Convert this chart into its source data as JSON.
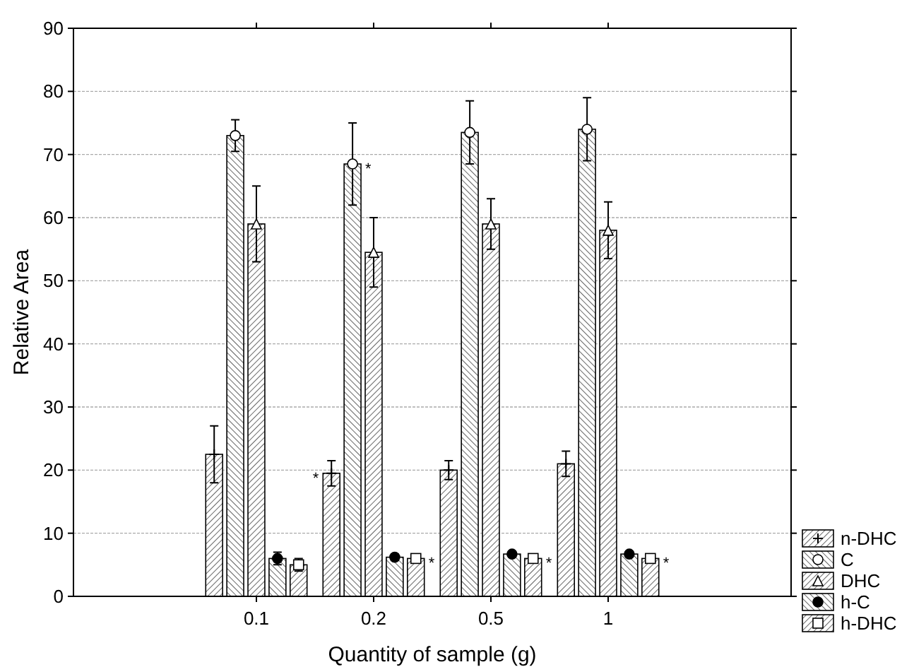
{
  "chart_data": {
    "type": "bar",
    "xlabel": "Quantity of sample (g)",
    "ylabel": "Relative Area",
    "categories": [
      "0.1",
      "0.2",
      "0.5",
      "1"
    ],
    "series": [
      {
        "name": "n-DHC",
        "color": "#000000",
        "marker": "cross",
        "values": [
          22.5,
          19.5,
          20,
          21
        ],
        "errors": [
          4.5,
          2,
          1.5,
          2
        ]
      },
      {
        "name": "C",
        "color": "#000000",
        "marker": "circle",
        "values": [
          73,
          68.5,
          73.5,
          74
        ],
        "errors": [
          2.5,
          6.5,
          5,
          5
        ]
      },
      {
        "name": "DHC",
        "color": "#000000",
        "marker": "triangle",
        "values": [
          59,
          54.5,
          59,
          58
        ],
        "errors": [
          6,
          5.5,
          4,
          4.5
        ]
      },
      {
        "name": "h-C",
        "color": "#000000",
        "marker": "circle",
        "values": [
          6,
          6.2,
          6.7,
          6.7
        ],
        "errors": [
          1,
          0.5,
          0.3,
          0.3
        ]
      },
      {
        "name": "h-DHC",
        "color": "#000000",
        "marker": "square",
        "values": [
          5,
          6,
          6,
          6
        ],
        "errors": [
          1,
          0.5,
          0.5,
          0.5
        ]
      }
    ],
    "annotations": [
      "*",
      "*",
      "*",
      "*",
      "*"
    ],
    "ylim": [
      0,
      90
    ],
    "yticks": [
      0,
      10,
      20,
      30,
      40,
      50,
      60,
      70,
      80,
      90
    ],
    "grid": "y",
    "legend": "bottom right"
  }
}
